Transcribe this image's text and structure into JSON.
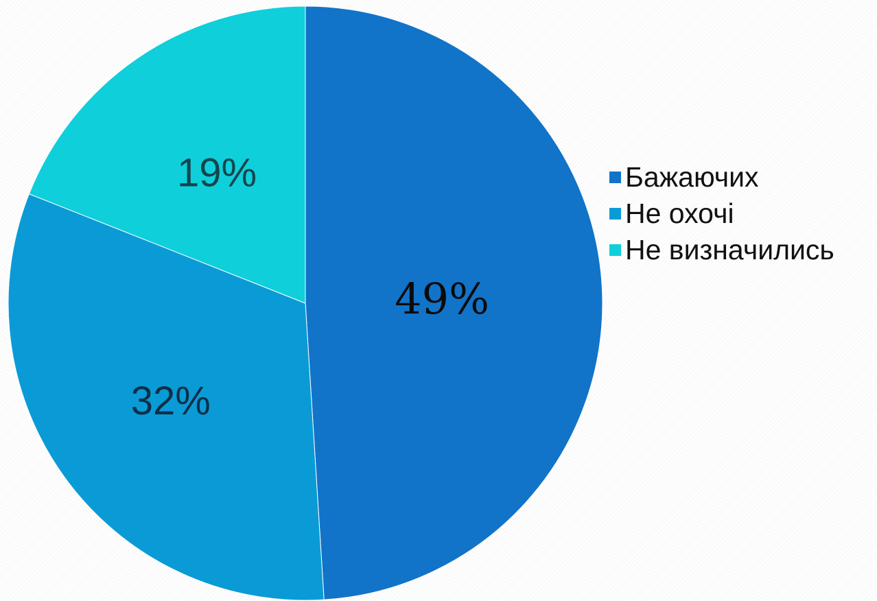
{
  "chart_data": {
    "type": "pie",
    "categories": [
      "Бажаючих",
      "Не охочі",
      "Не визначились"
    ],
    "values": [
      49,
      32,
      19
    ],
    "data_labels": [
      "49%",
      "32%",
      "19%"
    ],
    "colors": [
      "#1174c9",
      "#0a9bd6",
      "#0fcfda"
    ],
    "legend_position": "right",
    "start_angle": "12 o'clock",
    "direction": "clockwise"
  }
}
